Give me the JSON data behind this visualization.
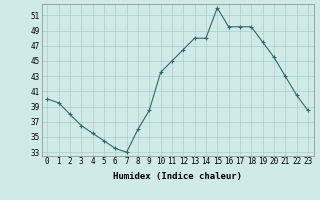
{
  "x": [
    0,
    1,
    2,
    3,
    4,
    5,
    6,
    7,
    8,
    9,
    10,
    11,
    12,
    13,
    14,
    15,
    16,
    17,
    18,
    19,
    20,
    21,
    22,
    23
  ],
  "y": [
    40,
    39.5,
    38,
    36.5,
    35.5,
    34.5,
    33.5,
    33,
    36,
    38.5,
    43.5,
    45,
    46.5,
    48,
    48,
    52,
    49.5,
    49.5,
    49.5,
    47.5,
    45.5,
    43,
    40.5,
    38.5
  ],
  "line_color": "#2e6b5e",
  "marker": "+",
  "bg_color": "#d0ebe7",
  "grid_color": "#a8cfc8",
  "xlabel": "Humidex (Indice chaleur)",
  "ylabel_ticks": [
    33,
    35,
    37,
    39,
    41,
    43,
    45,
    47,
    49,
    51
  ],
  "xlim": [
    -0.5,
    23.5
  ],
  "ylim": [
    32.5,
    52.5
  ],
  "xtick_fontsize": 5.5,
  "ytick_fontsize": 5.5,
  "xlabel_fontsize": 6.5
}
